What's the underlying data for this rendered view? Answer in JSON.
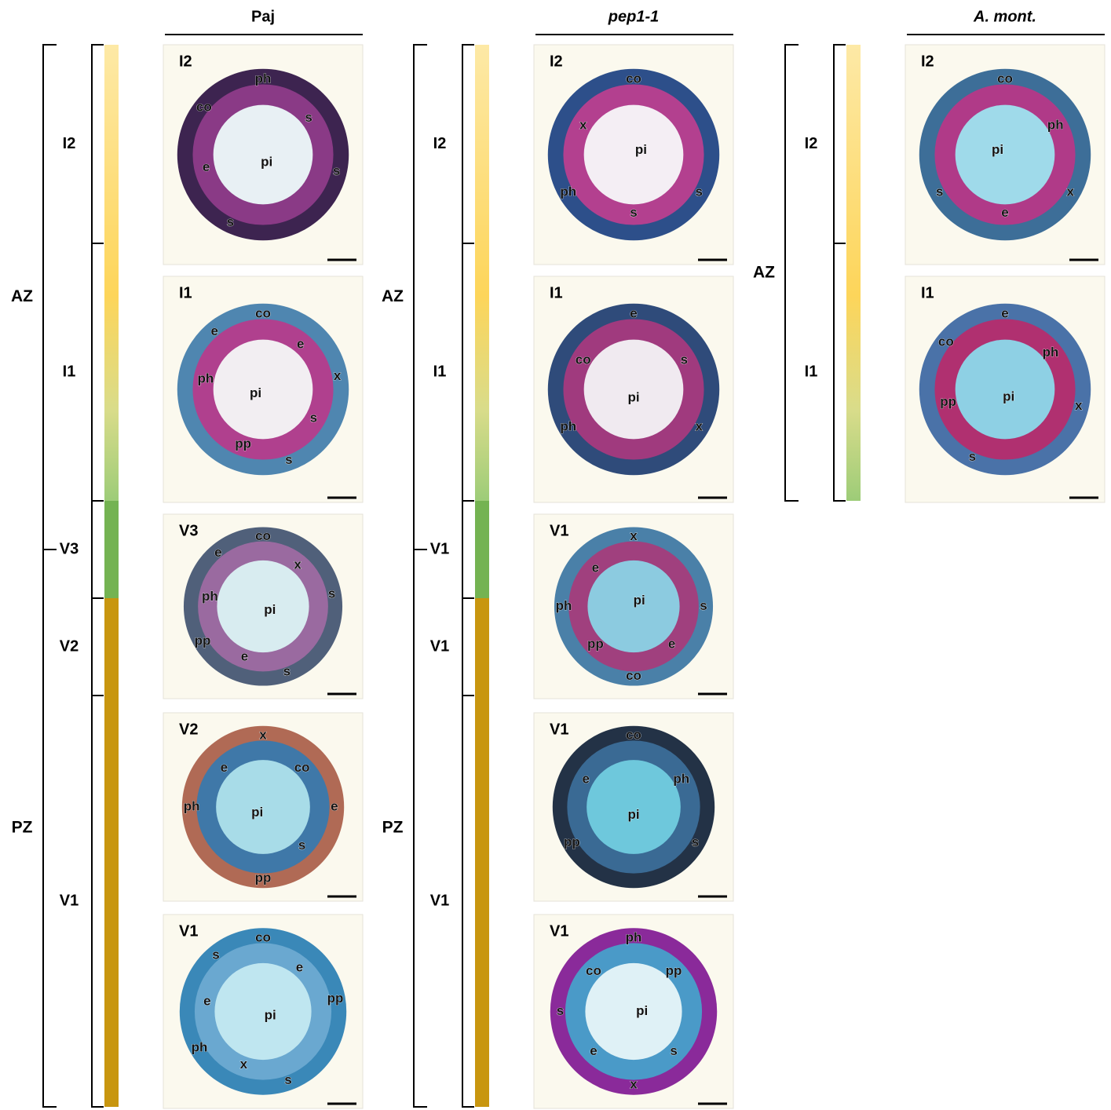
{
  "columns": [
    {
      "title": "Paj",
      "zones": [
        "AZ",
        "PZ"
      ],
      "segments": [
        "I2",
        "I1",
        "V3",
        "V2",
        "V1"
      ],
      "panels": [
        {
          "label": "I2",
          "annotations": [
            "ph",
            "s",
            "s",
            "pi",
            "s",
            "e",
            "co"
          ]
        },
        {
          "label": "I1",
          "annotations": [
            "co",
            "e",
            "x",
            "s",
            "s",
            "pp",
            "pi",
            "ph",
            "e"
          ]
        },
        {
          "label": "V3",
          "annotations": [
            "co",
            "x",
            "s",
            "pi",
            "s",
            "e",
            "pp",
            "ph",
            "e"
          ]
        },
        {
          "label": "V2",
          "annotations": [
            "x",
            "co",
            "e",
            "s",
            "pp",
            "pi",
            "ph",
            "e"
          ]
        },
        {
          "label": "V1",
          "annotations": [
            "co",
            "e",
            "pp",
            "pi",
            "s",
            "x",
            "ph",
            "e",
            "s"
          ]
        }
      ]
    },
    {
      "title": "pep1-1",
      "zones": [
        "AZ",
        "PZ"
      ],
      "segments": [
        "I2",
        "I1",
        "V1",
        "V1",
        "V1"
      ],
      "panels": [
        {
          "label": "I2",
          "annotations": [
            "co",
            "pi",
            "s",
            "s",
            "ph",
            "x"
          ]
        },
        {
          "label": "I1",
          "annotations": [
            "e",
            "s",
            "x",
            "pi",
            "ph",
            "co"
          ]
        },
        {
          "label": "V1",
          "annotations": [
            "x",
            "pi",
            "s",
            "e",
            "co",
            "pp",
            "ph",
            "e"
          ]
        },
        {
          "label": "V1",
          "annotations": [
            "co",
            "ph",
            "s",
            "pi",
            "pp",
            "e"
          ]
        },
        {
          "label": "V1",
          "annotations": [
            "ph",
            "pp",
            "pi",
            "s",
            "x",
            "e",
            "s",
            "co"
          ]
        }
      ]
    },
    {
      "title": "A. mont.",
      "zones": [
        "AZ"
      ],
      "segments": [
        "I2",
        "I1"
      ],
      "panels": [
        {
          "label": "I2",
          "annotations": [
            "co",
            "ph",
            "x",
            "e",
            "s",
            "pi"
          ]
        },
        {
          "label": "I1",
          "annotations": [
            "e",
            "ph",
            "x",
            "pi",
            "s",
            "pp",
            "co"
          ]
        }
      ]
    }
  ]
}
